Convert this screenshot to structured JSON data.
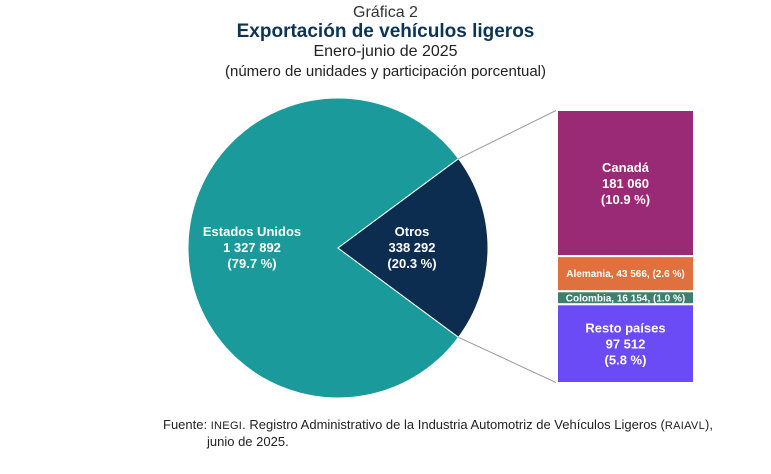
{
  "header": {
    "figure_label": "Gráfica 2",
    "title": "Exportación de vehículos ligeros",
    "period": "Enero-junio de 2025",
    "units_note": "(número de unidades y participación porcentual)"
  },
  "chart_data": {
    "type": "pie",
    "title": "Exportación de vehículos ligeros",
    "subtitle": "Enero-junio de 2025",
    "units": "número de unidades y participación porcentual",
    "slices": [
      {
        "name": "Estados Unidos",
        "value_label": "1 327 892",
        "pct_label": "(79.7 %)",
        "value": 1327892,
        "pct": 79.7,
        "color": "#1a9a9a"
      },
      {
        "name": "Otros",
        "value_label": "338 292",
        "pct_label": "(20.3 %)",
        "value": 338292,
        "pct": 20.3,
        "color": "#0c2d4f"
      }
    ],
    "breakdown": {
      "of": "Otros",
      "segments": [
        {
          "name": "Canadá",
          "value_label": "181 060",
          "pct_label": "(10.9 %)",
          "value": 181060,
          "pct": 10.9,
          "color": "#9b2a76"
        },
        {
          "inline_label": "Alemania, 43 566, (2.6 %)",
          "name": "Alemania",
          "value": 43566,
          "pct": 2.6,
          "color": "#e0703e"
        },
        {
          "inline_label": "Colombia, 16 154, (1.0 %)",
          "name": "Colombia",
          "value": 16154,
          "pct": 1.0,
          "color": "#3e7f6f"
        },
        {
          "name": "Resto países",
          "value_label": "97 512",
          "pct_label": "(5.8 %)",
          "value": 97512,
          "pct": 5.8,
          "color": "#6a4bf5"
        }
      ]
    }
  },
  "source": {
    "prefix": "Fuente: ",
    "org": "INEGI",
    "text_1": ". Registro Administrativo de la Industria Automotriz de Vehículos Ligeros (",
    "abbr": "RAIAVL",
    "text_2": "),",
    "line_2": "junio de 2025."
  }
}
